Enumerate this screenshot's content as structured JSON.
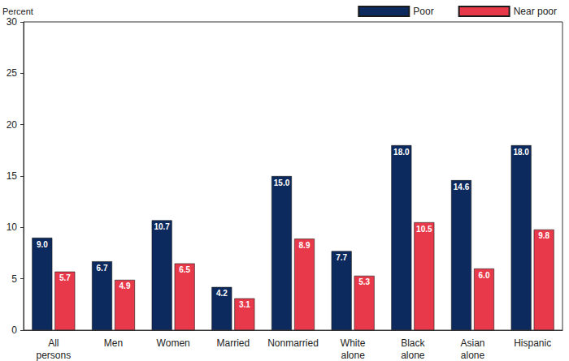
{
  "chart_data": {
    "type": "bar",
    "ylabel": "Percent",
    "categories": [
      "All persons",
      "Men",
      "Women",
      "Married",
      "Nonmarried",
      "White alone",
      "Black alone",
      "Asian alone",
      "Hispanic"
    ],
    "series": [
      {
        "name": "Poor",
        "color": "#0c2a5e",
        "values": [
          9.0,
          6.7,
          10.7,
          4.2,
          15.0,
          7.7,
          18.0,
          14.6,
          18.0
        ],
        "value_labels": [
          "9.0",
          "6.7",
          "10.7",
          "4.2",
          "15.0",
          "7.7",
          "18.0",
          "14.6",
          "18.0"
        ]
      },
      {
        "name": "Near poor",
        "color": "#e8394a",
        "values": [
          5.7,
          4.9,
          6.5,
          3.1,
          8.9,
          5.3,
          10.5,
          6.0,
          9.8
        ],
        "value_labels": [
          "5.7",
          "4.9",
          "6.5",
          "3.1",
          "8.9",
          "5.3",
          "10.5",
          "6.0",
          "9.8"
        ]
      }
    ],
    "ylim": [
      0,
      30
    ],
    "yticks": [
      0,
      5,
      10,
      15,
      20,
      25,
      30
    ],
    "grid": false,
    "legend": "top-right",
    "data_labels": true
  }
}
